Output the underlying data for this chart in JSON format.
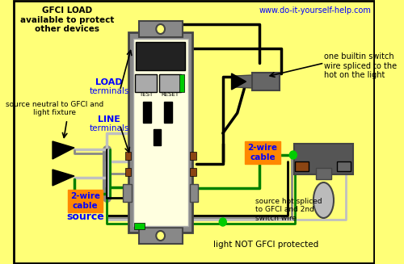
{
  "bg_color": "#FFFF77",
  "border_color": "#000000",
  "title_text": "www.do-it-yourself-help.com",
  "title_color": "#0000FF",
  "gfci_load_text": "GFCI LOAD\navailable to protect\nother devices",
  "load_terminals_text": "LOAD\nterminals",
  "line_terminals_text": "LINE\nterminals",
  "source_neutral_text": "source neutral to GFCI and\nlight fixture",
  "cable_source_label": "2-wire\ncable",
  "source_label": "source",
  "switch_wire_text": "one builtin switch\nwire spliced to the\nhot on the light",
  "cable_2wire_text": "2-wire\ncable",
  "source_hot_text": "source hot spliced\nto GFCI and 2nd\nswitch wire",
  "light_not_text": "light NOT GFCI protected",
  "wire_black": "#000000",
  "wire_white": "#C0C0C0",
  "wire_green": "#008000",
  "wire_gray": "#888888",
  "orange_bg": "#FF8800",
  "blue": "#0000FF",
  "gray": "#888888",
  "dark_gray": "#444444",
  "med_gray": "#666666",
  "outlet_face": "#FFFFE0",
  "green_bright": "#00CC00",
  "brown": "#8B4513",
  "black": "#000000",
  "cream": "#FFFFF0"
}
